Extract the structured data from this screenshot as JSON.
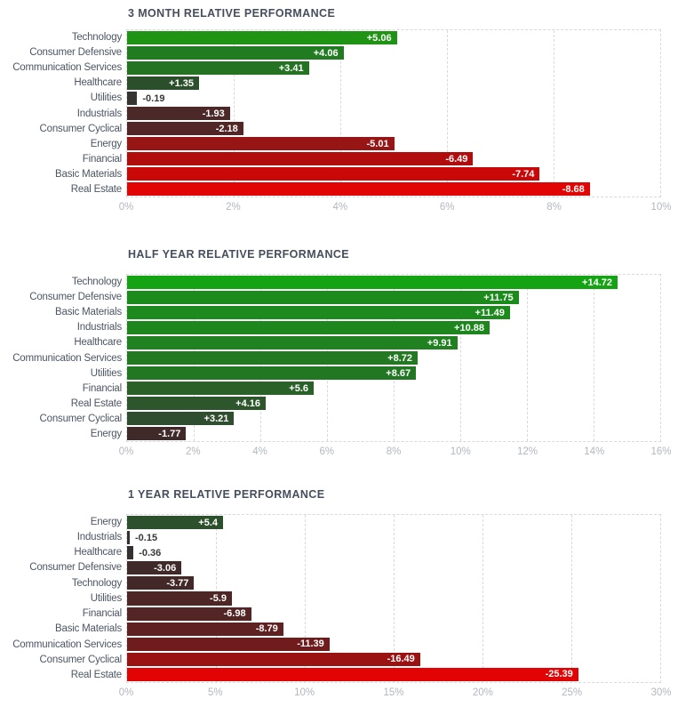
{
  "page": {
    "background": "#ffffff"
  },
  "style": {
    "title_color": "#454e5c",
    "category_label_color": "#4c5664",
    "tick_label_color": "#b2b7be",
    "grid_color": "#d8d9db",
    "value_label_inside_color": "#ffffff",
    "value_label_outside_color": "#383838"
  },
  "chart_data": [
    {
      "type": "bar",
      "orientation": "horizontal",
      "title": "3 MONTH RELATIVE PERFORMANCE",
      "grid": "dashed",
      "legend": "none",
      "bar_length_axis": "absolute value of performance (%)",
      "xlim": [
        0,
        10
      ],
      "tick_values": [
        0,
        2,
        4,
        6,
        8,
        10
      ],
      "tick_labels": [
        "0%",
        "2%",
        "4%",
        "6%",
        "8%",
        "10%"
      ],
      "categories": [
        "Technology",
        "Consumer Defensive",
        "Communication Services",
        "Healthcare",
        "Utilities",
        "Industrials",
        "Consumer Cyclical",
        "Energy",
        "Financial",
        "Basic Materials",
        "Real Estate"
      ],
      "values": [
        5.06,
        4.06,
        3.41,
        1.35,
        -0.19,
        -1.93,
        -2.18,
        -5.01,
        -6.49,
        -7.74,
        -8.68
      ],
      "value_labels": [
        "+5.06",
        "+4.06",
        "+3.41",
        "+1.35",
        "-0.19",
        "-1.93",
        "-2.18",
        "-5.01",
        "-6.49",
        "-7.74",
        "-8.68"
      ],
      "bar_colors": [
        "#1e9314",
        "#217c21",
        "#237323",
        "#2b4f2b",
        "#363333",
        "#4d2828",
        "#522626",
        "#971515",
        "#b10d0d",
        "#ca0808",
        "#e10505"
      ]
    },
    {
      "type": "bar",
      "orientation": "horizontal",
      "title": "HALF YEAR RELATIVE PERFORMANCE",
      "grid": "dashed",
      "legend": "none",
      "bar_length_axis": "absolute value of performance (%)",
      "xlim": [
        0,
        16
      ],
      "tick_values": [
        0,
        2,
        4,
        6,
        8,
        10,
        12,
        14,
        16
      ],
      "tick_labels": [
        "0%",
        "2%",
        "4%",
        "6%",
        "8%",
        "10%",
        "12%",
        "14%",
        "16%"
      ],
      "categories": [
        "Technology",
        "Consumer Defensive",
        "Basic Materials",
        "Industrials",
        "Healthcare",
        "Communication Services",
        "Utilities",
        "Financial",
        "Real Estate",
        "Consumer Cyclical",
        "Energy"
      ],
      "values": [
        14.72,
        11.75,
        11.49,
        10.88,
        9.91,
        8.72,
        8.67,
        5.6,
        4.16,
        3.21,
        -1.77
      ],
      "value_labels": [
        "+14.72",
        "+11.75",
        "+11.49",
        "+10.88",
        "+9.91",
        "+8.72",
        "+8.67",
        "+5.6",
        "+4.16",
        "+3.21",
        "-1.77"
      ],
      "bar_colors": [
        "#14a312",
        "#1b8c1b",
        "#1c8a1c",
        "#1d871d",
        "#1f811f",
        "#227922",
        "#227822",
        "#296129",
        "#2d562d",
        "#2f4d2f",
        "#402929"
      ]
    },
    {
      "type": "bar",
      "orientation": "horizontal",
      "title": "1 YEAR RELATIVE PERFORMANCE",
      "grid": "dashed",
      "legend": "none",
      "bar_length_axis": "absolute value of performance (%)",
      "xlim": [
        0,
        30
      ],
      "tick_values": [
        0,
        5,
        10,
        15,
        20,
        25,
        30
      ],
      "tick_labels": [
        "0%",
        "5%",
        "10%",
        "15%",
        "20%",
        "25%",
        "30%"
      ],
      "categories": [
        "Energy",
        "Industrials",
        "Healthcare",
        "Consumer Defensive",
        "Technology",
        "Utilities",
        "Financial",
        "Basic Materials",
        "Communication Services",
        "Consumer Cyclical",
        "Real Estate"
      ],
      "values": [
        5.4,
        -0.15,
        -0.36,
        -3.06,
        -3.77,
        -5.9,
        -6.98,
        -8.79,
        -11.39,
        -16.49,
        -25.39
      ],
      "value_labels": [
        "+5.4",
        "-0.15",
        "-0.36",
        "-3.06",
        "-3.77",
        "-5.9",
        "-6.98",
        "-8.79",
        "-11.39",
        "-16.49",
        "-25.39"
      ],
      "bar_colors": [
        "#2c4f2c",
        "#343030",
        "#343030",
        "#402929",
        "#432828",
        "#4e2626",
        "#532525",
        "#5f2121",
        "#701c1c",
        "#9b1212",
        "#e20404"
      ]
    }
  ]
}
